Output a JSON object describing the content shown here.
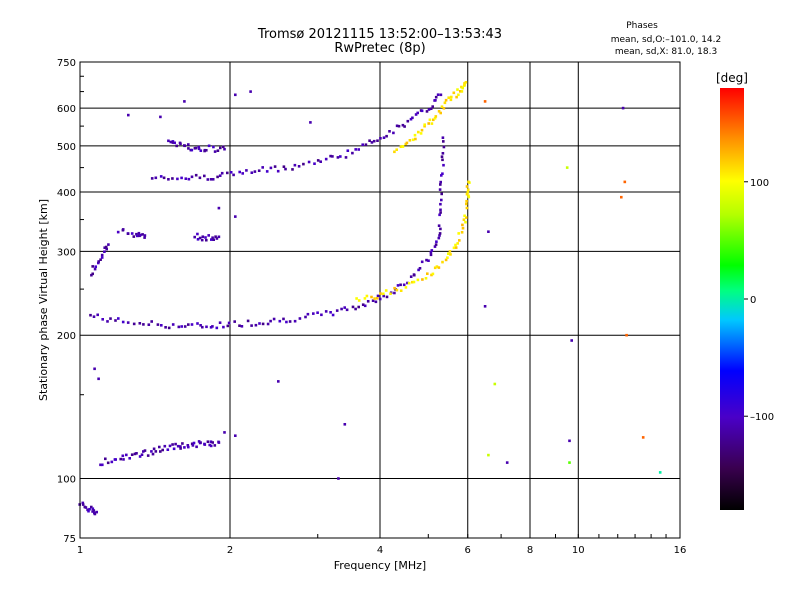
{
  "header": {
    "title": "Tromsø 20121115 13:52:00–13:53:43",
    "subtitle": "RwPretec (8p)",
    "phases_title": "Phases",
    "phases_o": "mean, sd,O:–101.0, 14.2",
    "phases_x": "mean, sd,X: 81.0, 18.3"
  },
  "chart_data": {
    "type": "scatter",
    "xlabel": "Frequency [MHz]",
    "ylabel": "Stationary phase Virtual Height [km]",
    "x_scale": "log",
    "y_scale": "log",
    "xlim": [
      1,
      16
    ],
    "ylim": [
      75,
      750
    ],
    "x_ticks": [
      1,
      2,
      4,
      6,
      8,
      10,
      16
    ],
    "x_tick_labels": [
      "1",
      "2",
      "4",
      "6",
      "8",
      "10",
      "16"
    ],
    "y_ticks": [
      75,
      100,
      200,
      300,
      400,
      500,
      600,
      750
    ],
    "y_tick_labels": [
      "75",
      "100",
      "200",
      "300",
      "400",
      "500",
      "600",
      "750"
    ],
    "grid": true,
    "colorbar": {
      "label": "[deg]",
      "range": [
        -180,
        180
      ],
      "ticks": [
        100,
        0,
        -100
      ],
      "tick_labels": [
        "100",
        "0",
        "–100"
      ]
    },
    "traces": [
      {
        "x": [
          1.05,
          1.2,
          1.4,
          1.6,
          1.8,
          2.0,
          2.3,
          2.6,
          3.0,
          3.4,
          3.8,
          4.2,
          4.6,
          5.0,
          5.25
        ],
        "y": [
          220,
          214,
          211,
          209,
          209,
          211,
          213,
          216,
          220,
          226,
          234,
          246,
          262,
          290,
          320
        ],
        "phase": -110
      },
      {
        "x": [
          5.25,
          5.3,
          5.33,
          5.35
        ],
        "y": [
          320,
          380,
          440,
          520
        ],
        "phase": -110
      },
      {
        "x": [
          1.4,
          1.6,
          1.8,
          2.0,
          2.3,
          2.6,
          3.0,
          3.4,
          3.8,
          4.2,
          4.6,
          5.0,
          5.3
        ],
        "y": [
          432,
          428,
          430,
          436,
          443,
          451,
          463,
          480,
          505,
          535,
          565,
          600,
          640
        ],
        "phase": -110
      },
      {
        "x": [
          4.3,
          4.6,
          4.9,
          5.2,
          5.5,
          5.8,
          5.95
        ],
        "y": [
          490,
          515,
          545,
          580,
          625,
          655,
          680
        ],
        "phase": 110
      },
      {
        "x": [
          3.6,
          4.0,
          4.5,
          5.0,
          5.4,
          5.7,
          5.9,
          6.0,
          6.02
        ],
        "y": [
          238,
          243,
          252,
          266,
          285,
          312,
          345,
          385,
          420
        ],
        "phase": 110
      },
      {
        "x": [
          1.1,
          1.2,
          1.3,
          1.4,
          1.5,
          1.6,
          1.7,
          1.8,
          1.9
        ],
        "y": [
          108,
          110,
          112,
          114,
          116,
          117,
          118,
          118,
          119
        ],
        "phase": -110
      },
      {
        "x": [
          1.5,
          1.6,
          1.7,
          1.8,
          1.95
        ],
        "y": [
          510,
          500,
          496,
          494,
          492
        ],
        "phase": -110
      },
      {
        "x": [
          1.05,
          1.1,
          1.14
        ],
        "y": [
          270,
          290,
          310
        ],
        "phase": -110
      },
      {
        "x": [
          1.2,
          1.3,
          1.35
        ],
        "y": [
          330,
          326,
          324
        ],
        "phase": -110
      },
      {
        "x": [
          1.7,
          1.8,
          1.9
        ],
        "y": [
          322,
          320,
          322
        ],
        "phase": -110
      },
      {
        "x": [
          1.0,
          1.05,
          1.08
        ],
        "y": [
          88,
          86,
          85
        ],
        "phase": -110
      }
    ],
    "points": [
      {
        "x": 1.25,
        "y": 580,
        "phase": -110
      },
      {
        "x": 1.45,
        "y": 575,
        "phase": -110
      },
      {
        "x": 1.62,
        "y": 620,
        "phase": -110
      },
      {
        "x": 2.05,
        "y": 640,
        "phase": -110
      },
      {
        "x": 2.2,
        "y": 650,
        "phase": -110
      },
      {
        "x": 2.9,
        "y": 560,
        "phase": -110
      },
      {
        "x": 1.9,
        "y": 370,
        "phase": -110
      },
      {
        "x": 2.05,
        "y": 355,
        "phase": -110
      },
      {
        "x": 1.07,
        "y": 170,
        "phase": -110
      },
      {
        "x": 1.09,
        "y": 162,
        "phase": -110
      },
      {
        "x": 1.95,
        "y": 125,
        "phase": -110
      },
      {
        "x": 2.05,
        "y": 123,
        "phase": -110
      },
      {
        "x": 2.5,
        "y": 160,
        "phase": -110
      },
      {
        "x": 3.4,
        "y": 130,
        "phase": -110
      },
      {
        "x": 3.3,
        "y": 100,
        "phase": -110
      },
      {
        "x": 6.5,
        "y": 620,
        "phase": 150
      },
      {
        "x": 6.6,
        "y": 330,
        "phase": -110
      },
      {
        "x": 6.5,
        "y": 230,
        "phase": -110
      },
      {
        "x": 9.6,
        "y": 120,
        "phase": -110
      },
      {
        "x": 9.7,
        "y": 195,
        "phase": -110
      },
      {
        "x": 12.3,
        "y": 600,
        "phase": -110
      },
      {
        "x": 12.4,
        "y": 420,
        "phase": 150
      },
      {
        "x": 12.2,
        "y": 390,
        "phase": 150
      },
      {
        "x": 12.5,
        "y": 200,
        "phase": 150
      },
      {
        "x": 14.6,
        "y": 103,
        "phase": 0
      },
      {
        "x": 9.6,
        "y": 108,
        "phase": 50
      },
      {
        "x": 9.5,
        "y": 450,
        "phase": 80
      },
      {
        "x": 6.8,
        "y": 158,
        "phase": 80
      },
      {
        "x": 6.6,
        "y": 112,
        "phase": 80
      },
      {
        "x": 13.5,
        "y": 122,
        "phase": 150
      },
      {
        "x": 7.2,
        "y": 108,
        "phase": -110
      }
    ]
  }
}
